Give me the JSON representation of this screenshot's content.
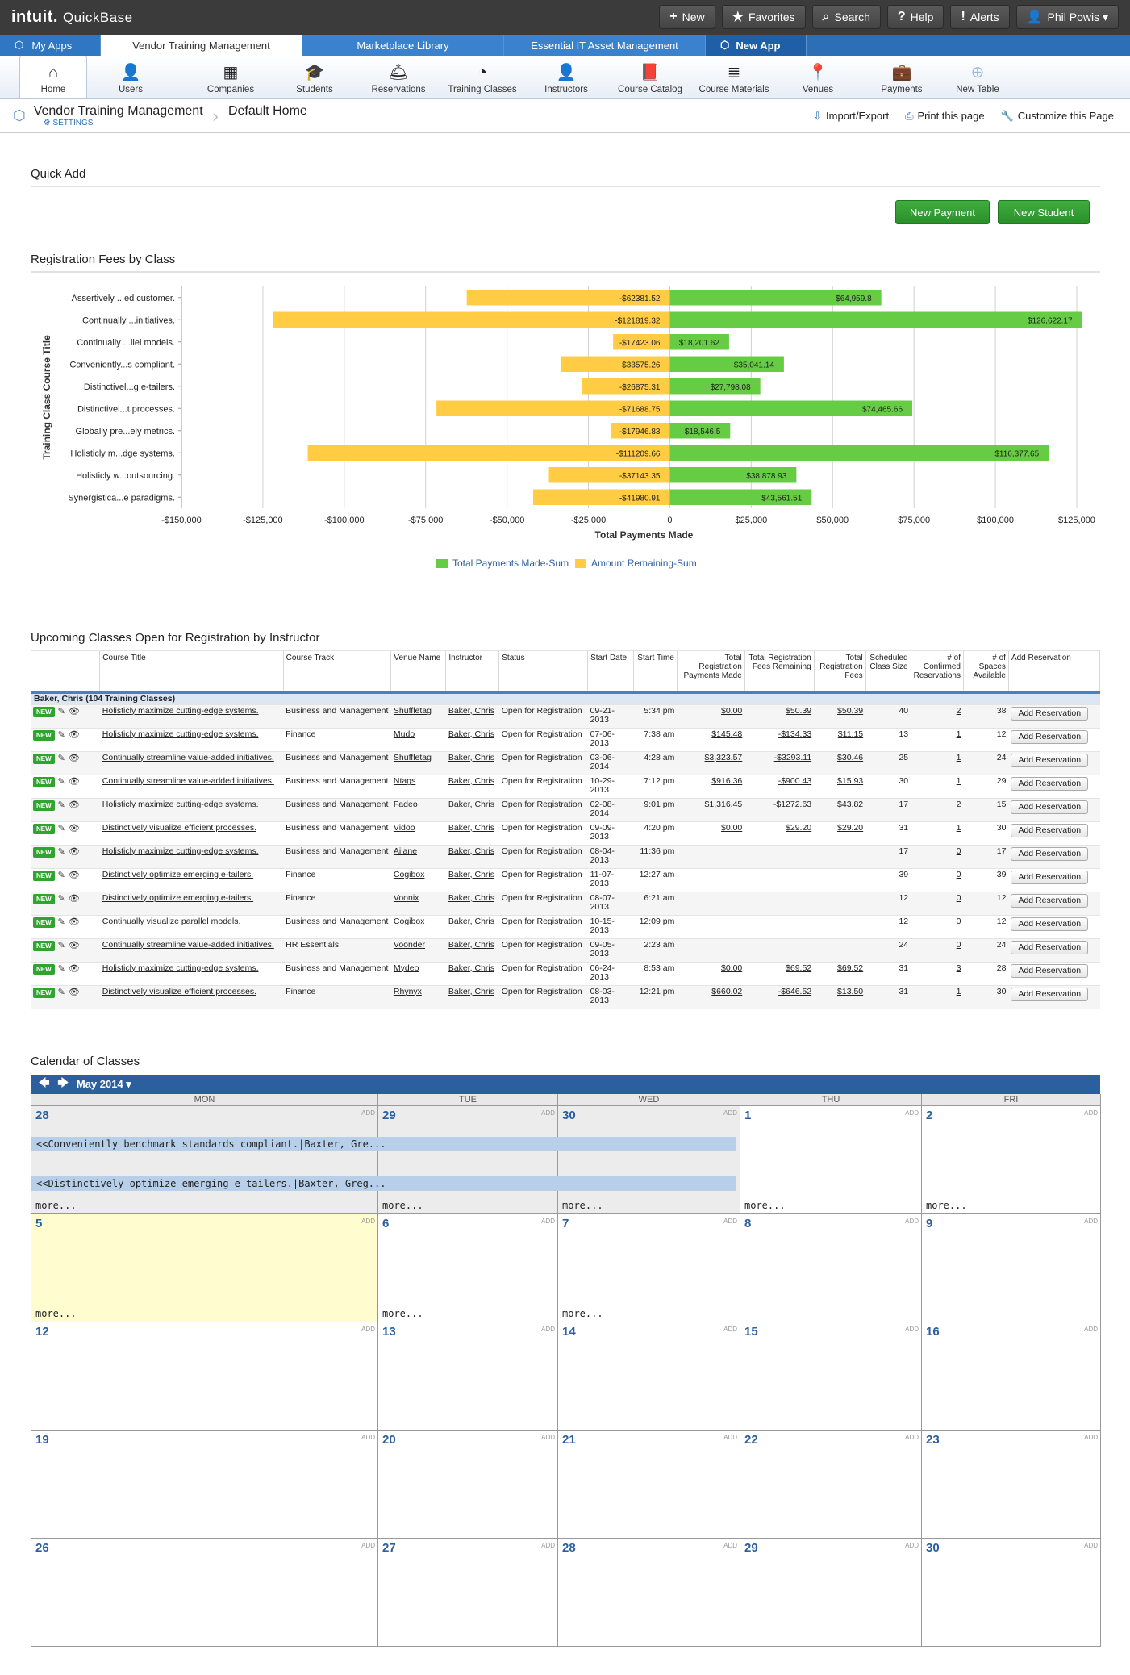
{
  "brand": {
    "logo": "intuit.",
    "product": "QuickBase"
  },
  "topnav": [
    {
      "icon": "+",
      "label": "New"
    },
    {
      "icon": "★",
      "label": "Favorites"
    },
    {
      "icon": "⌕",
      "label": "Search"
    },
    {
      "icon": "?",
      "label": "Help"
    },
    {
      "icon": "!",
      "label": "Alerts"
    },
    {
      "icon": "👤",
      "label": "Phil Powis ▾"
    }
  ],
  "tabs": {
    "myapps": "My Apps",
    "active": "Vendor Training Management",
    "t2": "Marketplace Library",
    "t3": "Essential IT Asset Management",
    "newapp": "New App"
  },
  "icons": [
    {
      "g": "⌂",
      "label": "Home"
    },
    {
      "g": "👤",
      "label": "Users"
    },
    {
      "g": "▦",
      "label": "Companies"
    },
    {
      "g": "🎓",
      "label": "Students"
    },
    {
      "g": "🛎",
      "label": "Reservations"
    },
    {
      "g": "◔",
      "label": "Training Classes"
    },
    {
      "g": "👤",
      "label": "Instructors"
    },
    {
      "g": "📕",
      "label": "Course Catalog"
    },
    {
      "g": "≣",
      "label": "Course Materials"
    },
    {
      "g": "📍",
      "label": "Venues"
    },
    {
      "g": "💼",
      "label": "Payments"
    },
    {
      "g": "⊕",
      "label": "New Table"
    }
  ],
  "breadcrumb": {
    "app": "Vendor Training Management",
    "settings": "⚙ SETTINGS",
    "page": "Default Home",
    "import": "Import/Export",
    "print": "Print this page",
    "customize": "Customize this Page"
  },
  "quickadd": {
    "title": "Quick Add",
    "btn1": "New Payment",
    "btn2": "New Student"
  },
  "chart_data": {
    "type": "bar",
    "title": "Registration Fees by Class",
    "xlabel": "Total Payments Made",
    "ylabel": "Training Class Course Title",
    "categories": [
      "Assertively ...ed customer.",
      "Continually ...initiatives.",
      "Continually ...llel models.",
      "Conveniently...s compliant.",
      "Distinctivel...g e-tailers.",
      "Distinctivel...t processes.",
      "Globally pre...ely metrics.",
      "Holisticly m...dge systems.",
      "Holisticly w...outsourcing.",
      "Synergistica...e paradigms."
    ],
    "series": [
      {
        "name": "Total Payments Made-Sum",
        "color": "#66cc44",
        "values": [
          64959.8,
          126622.17,
          18201.62,
          35041.14,
          27798.08,
          74465.66,
          18546.5,
          116377.65,
          38878.93,
          43561.51
        ],
        "labels": [
          "$64,959.8",
          "$126,622.17",
          "$18,201.62",
          "$35,041.14",
          "$27,798.08",
          "$74,465.66",
          "$18,546.5",
          "$116,377.65",
          "$38,878.93",
          "$43,561.51"
        ]
      },
      {
        "name": "Amount Remaining-Sum",
        "color": "#ffcc44",
        "values": [
          -62381.52,
          -121819.32,
          -17423.06,
          -33575.26,
          -26875.31,
          -71688.75,
          -17946.83,
          -111209.66,
          -37143.35,
          -41980.91
        ],
        "labels": [
          "-$62381.52",
          "-$121819.32",
          "-$17423.06",
          "-$33575.26",
          "-$26875.31",
          "-$71688.75",
          "-$17946.83",
          "-$111209.66",
          "-$37143.35",
          "-$41980.91"
        ]
      }
    ],
    "xlim": [
      -150000,
      125000
    ],
    "ticks": [
      "-$150,000",
      "-$125,000",
      "-$100,000",
      "-$75,000",
      "-$50,000",
      "-$25,000",
      "0",
      "$25,000",
      "$50,000",
      "$75,000",
      "$100,000",
      "$125,000"
    ],
    "grid": true,
    "legend": "bottom"
  },
  "upcoming": {
    "title": "Upcoming Classes Open for Registration by Instructor",
    "headers": [
      "Course Title",
      "Course Track",
      "Venue Name",
      "Instructor",
      "Status",
      "Start Date",
      "Start Time",
      "Total Registration Payments Made",
      "Total Registration Fees Remaining",
      "Total Registration Fees",
      "Scheduled Class Size",
      "# of Confirmed Reservations",
      "# of Spaces Available",
      "Add Reservation"
    ],
    "group": "Baker, Chris  (104 Training Classes)",
    "new": "NEW",
    "btn": "Add Reservation",
    "rows": [
      [
        "Holisticly maximize cutting-edge systems.",
        "Business and Management",
        "Shuffletag",
        "Baker, Chris",
        "Open for Registration",
        "09-21-2013",
        "5:34 pm",
        "$0.00",
        "$50.39",
        "$50.39",
        "40",
        "2",
        "38"
      ],
      [
        "Holisticly maximize cutting-edge systems.",
        "Finance",
        "Mudo",
        "Baker, Chris",
        "Open for Registration",
        "07-06-2013",
        "7:38 am",
        "$145.48",
        "-$134.33",
        "$11.15",
        "13",
        "1",
        "12"
      ],
      [
        "Continually streamline value-added initiatives.",
        "Business and Management",
        "Shuffletag",
        "Baker, Chris",
        "Open for Registration",
        "03-06-2014",
        "4:28 am",
        "$3,323.57",
        "-$3293.11",
        "$30.46",
        "25",
        "1",
        "24"
      ],
      [
        "Continually streamline value-added initiatives.",
        "Business and Management",
        "Ntags",
        "Baker, Chris",
        "Open for Registration",
        "10-29-2013",
        "7:12 pm",
        "$916.36",
        "-$900.43",
        "$15.93",
        "30",
        "1",
        "29"
      ],
      [
        "Holisticly maximize cutting-edge systems.",
        "Business and Management",
        "Fadeo",
        "Baker, Chris",
        "Open for Registration",
        "02-08-2014",
        "9:01 pm",
        "$1,316.45",
        "-$1272.63",
        "$43.82",
        "17",
        "2",
        "15"
      ],
      [
        "Distinctively visualize efficient processes.",
        "Business and Management",
        "Vidoo",
        "Baker, Chris",
        "Open for Registration",
        "09-09-2013",
        "4:20 pm",
        "$0.00",
        "$29.20",
        "$29.20",
        "31",
        "1",
        "30"
      ],
      [
        "Holisticly maximize cutting-edge systems.",
        "Business and Management",
        "Ailane",
        "Baker, Chris",
        "Open for Registration",
        "08-04-2013",
        "11:36 pm",
        "",
        "",
        "",
        "17",
        "0",
        "17"
      ],
      [
        "Distinctively optimize emerging e-tailers.",
        "Finance",
        "Cogibox",
        "Baker, Chris",
        "Open for Registration",
        "11-07-2013",
        "12:27 am",
        "",
        "",
        "",
        "39",
        "0",
        "39"
      ],
      [
        "Distinctively optimize emerging e-tailers.",
        "Finance",
        "Voonix",
        "Baker, Chris",
        "Open for Registration",
        "08-07-2013",
        "6:21 am",
        "",
        "",
        "",
        "12",
        "0",
        "12"
      ],
      [
        "Continually visualize parallel models.",
        "Business and Management",
        "Cogibox",
        "Baker, Chris",
        "Open for Registration",
        "10-15-2013",
        "12:09 pm",
        "",
        "",
        "",
        "12",
        "0",
        "12"
      ],
      [
        "Continually streamline value-added initiatives.",
        "HR Essentials",
        "Voonder",
        "Baker, Chris",
        "Open for Registration",
        "09-05-2013",
        "2:23 am",
        "",
        "",
        "",
        "24",
        "0",
        "24"
      ],
      [
        "Holisticly maximize cutting-edge systems.",
        "Business and Management",
        "Mydeo",
        "Baker, Chris",
        "Open for Registration",
        "06-24-2013",
        "8:53 am",
        "$0.00",
        "$69.52",
        "$69.52",
        "31",
        "3",
        "28"
      ],
      [
        "Distinctively visualize efficient processes.",
        "Finance",
        "Rhynyx",
        "Baker, Chris",
        "Open for Registration",
        "08-03-2013",
        "12:21 pm",
        "$660.02",
        "-$646.52",
        "$13.50",
        "31",
        "1",
        "30"
      ]
    ]
  },
  "calendar": {
    "title": "Calendar of Classes",
    "month": "May 2014 ▾",
    "days": [
      "MON",
      "TUE",
      "WED",
      "THU",
      "FRI"
    ],
    "add": "ADD",
    "more": "more...",
    "weeks": [
      [
        "28",
        "29",
        "30",
        "1",
        "2"
      ],
      [
        "5",
        "6",
        "7",
        "8",
        "9"
      ],
      [
        "12",
        "13",
        "14",
        "15",
        "16"
      ],
      [
        "19",
        "20",
        "21",
        "22",
        "23"
      ],
      [
        "26",
        "27",
        "28",
        "29",
        "30"
      ]
    ],
    "events": [
      "<<Conveniently benchmark standards compliant.|Baxter, Gre...",
      "<<Distinctively optimize emerging e-tailers.|Baxter, Greg..."
    ]
  }
}
